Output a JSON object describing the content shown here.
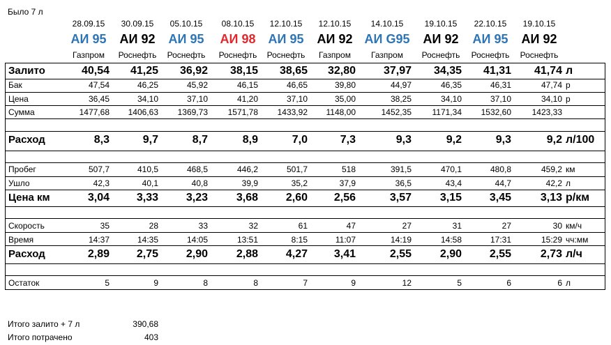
{
  "top_note": "Было 7 л",
  "columns": [
    {
      "date": "28.09.15",
      "fuel": "АИ 95",
      "fuel_color": "#2e75b6",
      "station": "Газпром"
    },
    {
      "date": "30.09.15",
      "fuel": "АИ 92",
      "fuel_color": "#000000",
      "station": "Роснефть"
    },
    {
      "date": "05.10.15",
      "fuel": "АИ 95",
      "fuel_color": "#2e75b6",
      "station": "Роснефть"
    },
    {
      "date": "08.10.15",
      "fuel": "АИ 98",
      "fuel_color": "#e0282e",
      "station": "Роснефть"
    },
    {
      "date": "12.10.15",
      "fuel": "АИ 95",
      "fuel_color": "#2e75b6",
      "station": "Роснефть"
    },
    {
      "date": "12.10.15",
      "fuel": "АИ 92",
      "fuel_color": "#000000",
      "station": "Газпром"
    },
    {
      "date": "14.10.15",
      "fuel": "АИ G95",
      "fuel_color": "#2e75b6",
      "station": "Газпром"
    },
    {
      "date": "19.10.15",
      "fuel": "АИ 92",
      "fuel_color": "#000000",
      "station": "Роснефть"
    },
    {
      "date": "22.10.15",
      "fuel": "АИ 95",
      "fuel_color": "#2e75b6",
      "station": "Роснефть"
    },
    {
      "date": "19.10.15",
      "fuel": "АИ 92",
      "fuel_color": "#000000",
      "station": "Роснефть"
    }
  ],
  "rows": [
    {
      "label": "Залито",
      "style": "big",
      "unit": "л",
      "values": [
        "40,54",
        "41,25",
        "36,92",
        "38,15",
        "38,65",
        "32,80",
        "37,97",
        "34,35",
        "41,31",
        "41,74"
      ]
    },
    {
      "label": "Бак",
      "style": "small",
      "unit": "р",
      "values": [
        "47,54",
        "46,25",
        "45,92",
        "46,15",
        "46,65",
        "39,80",
        "44,97",
        "46,35",
        "46,31",
        "47,74"
      ]
    },
    {
      "label": "Цена",
      "style": "small",
      "unit": "р",
      "values": [
        "36,45",
        "34,10",
        "37,10",
        "41,20",
        "37,10",
        "35,00",
        "38,25",
        "34,10",
        "37,10",
        "34,10"
      ]
    },
    {
      "label": "Сумма",
      "style": "small",
      "unit": "",
      "values": [
        "1477,68",
        "1406,63",
        "1369,73",
        "1571,78",
        "1433,92",
        "1148,00",
        "1452,35",
        "1171,34",
        "1532,60",
        "1423,33"
      ]
    },
    {
      "label": "Расход",
      "style": "big",
      "unit": "л/100",
      "values": [
        "8,3",
        "9,7",
        "8,7",
        "8,9",
        "7,0",
        "7,3",
        "9,3",
        "9,2",
        "9,3",
        "9,2"
      ]
    },
    {
      "label": "Пробег",
      "style": "small",
      "unit": "км",
      "values": [
        "507,7",
        "410,5",
        "468,5",
        "446,2",
        "501,7",
        "518",
        "391,5",
        "470,1",
        "480,8",
        "459,2"
      ]
    },
    {
      "label": "Ушло",
      "style": "small",
      "unit": "л",
      "values": [
        "42,3",
        "40,1",
        "40,8",
        "39,9",
        "35,2",
        "37,9",
        "36,5",
        "43,4",
        "44,7",
        "42,2"
      ]
    },
    {
      "label": "Цена км",
      "style": "big",
      "unit": "р/км",
      "values": [
        "3,04",
        "3,33",
        "3,23",
        "3,68",
        "2,60",
        "2,56",
        "3,57",
        "3,15",
        "3,45",
        "3,13"
      ]
    },
    {
      "label": "Скорость",
      "style": "small",
      "unit": "км/ч",
      "values": [
        "35",
        "28",
        "33",
        "32",
        "61",
        "47",
        "27",
        "31",
        "27",
        "30"
      ]
    },
    {
      "label": "Время",
      "style": "small",
      "unit": "чч:мм",
      "values": [
        "14:37",
        "14:35",
        "14:05",
        "13:51",
        "8:15",
        "11:07",
        "14:19",
        "14:58",
        "17:31",
        "15:29"
      ]
    },
    {
      "label": "Расход",
      "style": "big",
      "unit": "л/ч",
      "values": [
        "2,89",
        "2,75",
        "2,90",
        "2,88",
        "4,27",
        "3,41",
        "2,55",
        "2,90",
        "2,55",
        "2,73"
      ]
    },
    {
      "label": "Остаток",
      "style": "small",
      "unit": "л",
      "values": [
        "5",
        "9",
        "8",
        "8",
        "7",
        "9",
        "12",
        "5",
        "6",
        "6"
      ]
    }
  ],
  "totals": [
    {
      "label": "Итого залито + 7 л",
      "value": "390,68"
    },
    {
      "label": "Итого потрачено",
      "value": "403"
    }
  ]
}
